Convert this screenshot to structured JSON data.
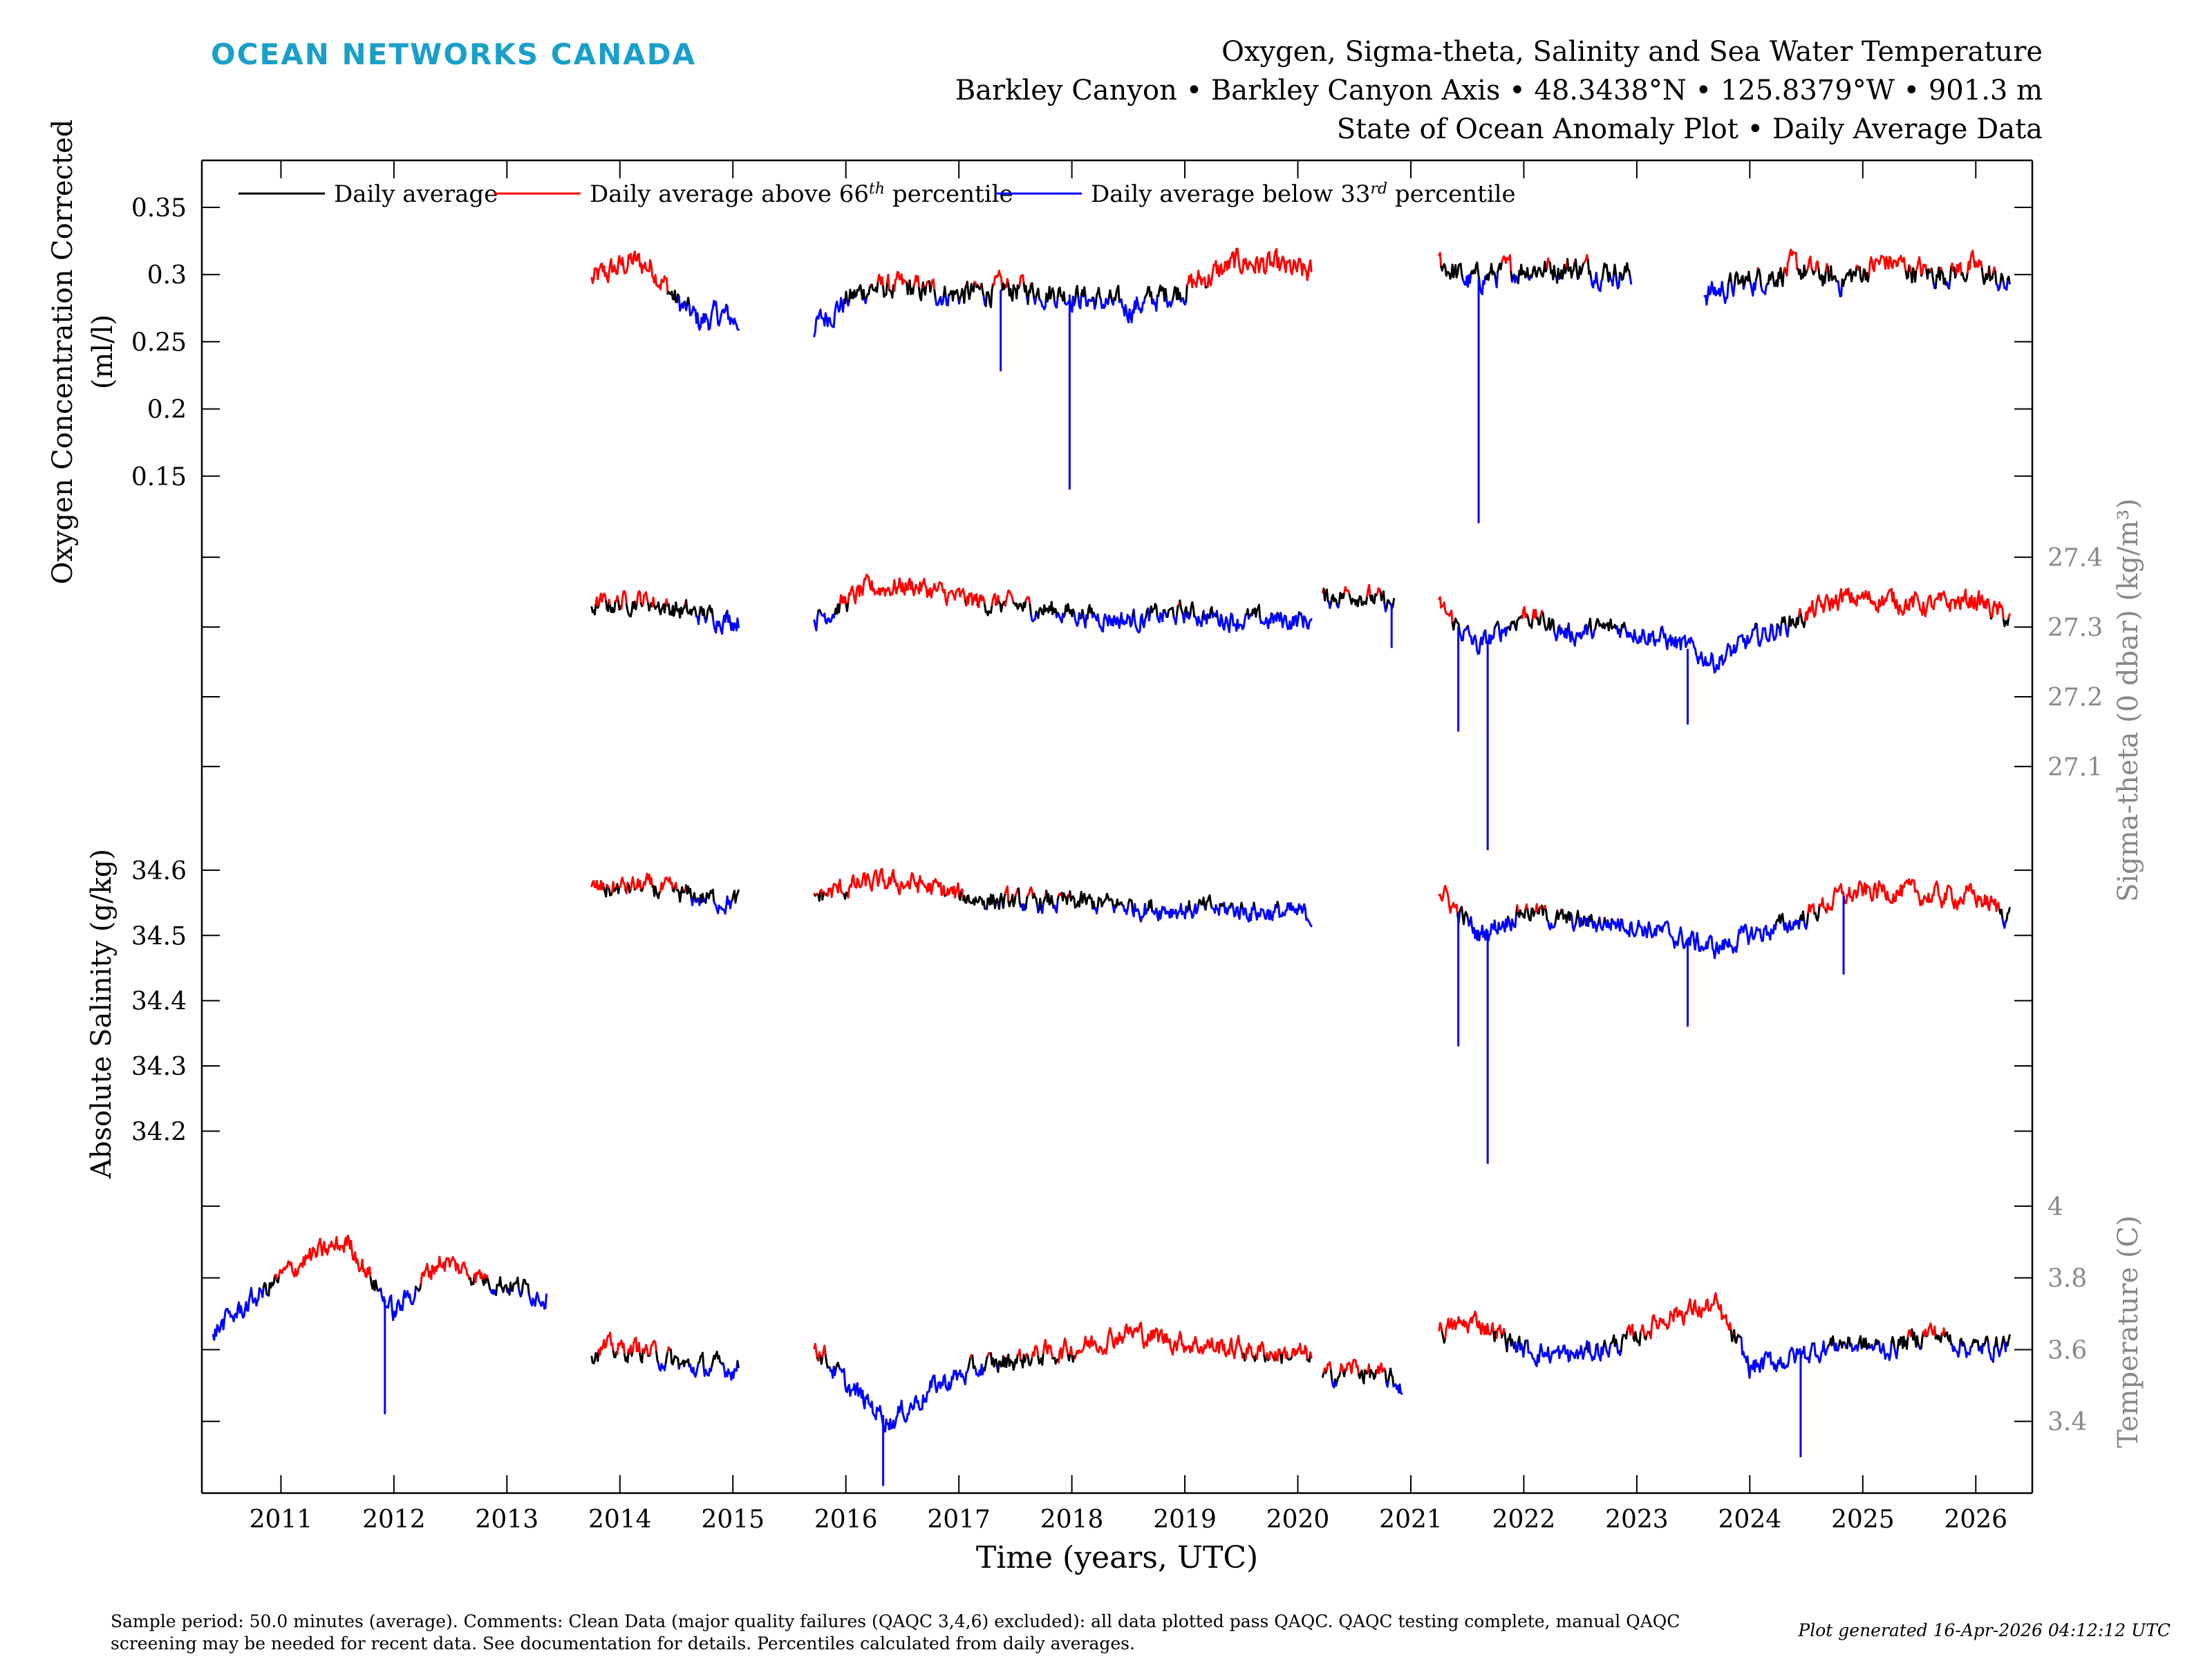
{
  "header": {
    "logo_text": "OCEAN NETWORKS CANADA",
    "title_line1": "Oxygen, Sigma-theta, Salinity and Sea Water Temperature",
    "title_line2": "Barkley Canyon • Barkley Canyon Axis • 48.3438°N • 125.8379°W • 901.3 m",
    "title_line3": "State of Ocean Anomaly Plot • Daily Average Data"
  },
  "footer": {
    "note": "Sample period: 50.0 minutes (average). Comments: Clean Data (major quality failures (QAQC 3,4,6) excluded): all data plotted pass QAQC. QAQC testing complete, manual QAQC screening may be needed for recent data. See documentation for details. Percentiles calculated from daily averages.",
    "generated": "Plot generated 16-Apr-2026 04:12:12 UTC"
  },
  "colors": {
    "average": "#000000",
    "above": "#ff0000",
    "below": "#0000ff",
    "right_axis": "#888888",
    "logo": "#1aa0c8"
  },
  "chart_data": {
    "type": "line",
    "xlabel": "Time (years, UTC)",
    "xlim": [
      2010.3,
      2026.5
    ],
    "x_ticks": [
      2011,
      2012,
      2013,
      2014,
      2015,
      2016,
      2017,
      2018,
      2019,
      2020,
      2021,
      2022,
      2023,
      2024,
      2025,
      2026
    ],
    "legend": {
      "position": "top-left",
      "entries": [
        {
          "label": "Daily average",
          "sup": "",
          "suffix": "",
          "color": "#000000"
        },
        {
          "label": "Daily average above 66",
          "sup": "th",
          "suffix": " percentile",
          "color": "#ff0000"
        },
        {
          "label": "Daily average below 33",
          "sup": "rd",
          "suffix": " percentile",
          "color": "#0000ff"
        }
      ]
    },
    "panels": [
      {
        "variable": "Oxygen Concentration Corrected",
        "ylabel": [
          "Oxygen Concentration Corrected",
          "(ml/l)"
        ],
        "axis_side": "left",
        "ylim": [
          0.1,
          0.385
        ],
        "yticks": [
          0.15,
          0.2,
          0.25,
          0.3,
          0.35
        ],
        "ytick_labels": [
          "0.15",
          "0.2",
          "0.25",
          "0.3",
          "0.35"
        ],
        "segments": [
          {
            "x": [
              2013.75,
              2014.1,
              2014.3,
              2014.5,
              2014.7,
              2014.9,
              2015.05
            ],
            "y": [
              0.295,
              0.31,
              0.305,
              0.28,
              0.265,
              0.27,
              0.265
            ]
          },
          {
            "x": [
              2015.72,
              2015.9,
              2016.2,
              2016.5,
              2017.0,
              2017.5,
              2018.0,
              2018.5,
              2019.0,
              2019.5,
              2020.12
            ],
            "y": [
              0.26,
              0.275,
              0.29,
              0.29,
              0.285,
              0.29,
              0.285,
              0.275,
              0.29,
              0.31,
              0.3
            ]
          },
          {
            "x": [
              2021.25,
              2021.5,
              2022.0,
              2022.5,
              2022.95
            ],
            "y": [
              0.31,
              0.295,
              0.305,
              0.305,
              0.3
            ]
          },
          {
            "x": [
              2023.6,
              2024.0,
              2024.4,
              2024.8,
              2025.2,
              2025.6,
              2026.0,
              2026.3
            ],
            "y": [
              0.285,
              0.295,
              0.305,
              0.295,
              0.31,
              0.3,
              0.305,
              0.29
            ]
          }
        ],
        "spikes": [
          {
            "x": 2017.98,
            "y": 0.14
          },
          {
            "x": 2017.37,
            "y": 0.228
          },
          {
            "x": 2021.6,
            "y": 0.115
          }
        ]
      },
      {
        "variable": "Sigma-theta",
        "ylabel": [
          "Sigma-theta (0 dbar) (kg/m³)"
        ],
        "axis_side": "right",
        "ylim": [
          26.97,
          27.42
        ],
        "yticks": [
          27.1,
          27.2,
          27.3,
          27.4
        ],
        "ytick_labels": [
          "27.1",
          "27.2",
          "27.3",
          "27.4"
        ],
        "segments": [
          {
            "x": [
              2013.75,
              2014.2,
              2014.6,
              2015.05
            ],
            "y": [
              27.33,
              27.34,
              27.32,
              27.31
            ]
          },
          {
            "x": [
              2015.72,
              2016.2,
              2016.6,
              2017.0,
              2017.5,
              2018.0,
              2018.5,
              2019.0,
              2019.5,
              2020.12
            ],
            "y": [
              27.31,
              27.355,
              27.36,
              27.34,
              27.33,
              27.32,
              27.31,
              27.32,
              27.31,
              27.31
            ]
          },
          {
            "x": [
              2020.22,
              2020.5,
              2020.85
            ],
            "y": [
              27.34,
              27.35,
              27.33
            ]
          },
          {
            "x": [
              2021.25,
              2021.6,
              2022.0,
              2022.4,
              2022.9,
              2023.3,
              2023.7,
              2024.0,
              2024.4,
              2024.8,
              2025.2,
              2025.6,
              2026.0,
              2026.3
            ],
            "y": [
              27.33,
              27.27,
              27.32,
              27.29,
              27.3,
              27.28,
              27.25,
              27.28,
              27.31,
              27.34,
              27.34,
              27.33,
              27.34,
              27.31
            ]
          }
        ],
        "spikes": [
          {
            "x": 2021.68,
            "y": 26.98
          },
          {
            "x": 2021.42,
            "y": 27.15
          },
          {
            "x": 2023.45,
            "y": 27.16
          },
          {
            "x": 2020.83,
            "y": 27.27
          }
        ]
      },
      {
        "variable": "Absolute Salinity",
        "ylabel": [
          "Absolute Salinity (g/kg)"
        ],
        "axis_side": "left",
        "ylim": [
          34.14,
          34.62
        ],
        "yticks": [
          34.2,
          34.3,
          34.4,
          34.5,
          34.6
        ],
        "ytick_labels": [
          "34.2",
          "34.3",
          "34.4",
          "34.5",
          "34.6"
        ],
        "segments": [
          {
            "x": [
              2013.75,
              2014.2,
              2014.6,
              2015.05
            ],
            "y": [
              34.57,
              34.575,
              34.56,
              34.55
            ]
          },
          {
            "x": [
              2015.72,
              2016.2,
              2016.6,
              2017.0,
              2017.5,
              2018.0,
              2018.5,
              2019.0,
              2019.5,
              2020.12
            ],
            "y": [
              34.56,
              34.58,
              34.58,
              34.56,
              34.55,
              34.55,
              34.545,
              34.54,
              34.54,
              34.53
            ]
          },
          {
            "x": [
              2021.25,
              2021.6,
              2022.0,
              2022.4,
              2022.9,
              2023.3,
              2023.7,
              2024.0,
              2024.4,
              2024.8,
              2025.2,
              2025.6,
              2026.0,
              2026.3
            ],
            "y": [
              34.57,
              34.5,
              34.54,
              34.52,
              34.52,
              34.5,
              34.48,
              34.5,
              34.52,
              34.56,
              34.57,
              34.56,
              34.56,
              34.53
            ]
          }
        ],
        "spikes": [
          {
            "x": 2021.68,
            "y": 34.15
          },
          {
            "x": 2021.42,
            "y": 34.33
          },
          {
            "x": 2023.45,
            "y": 34.36
          },
          {
            "x": 2024.83,
            "y": 34.44
          }
        ]
      },
      {
        "variable": "Temperature",
        "ylabel": [
          "Temperature (C)"
        ],
        "axis_side": "right",
        "ylim": [
          3.2,
          4.1
        ],
        "yticks": [
          3.4,
          3.6,
          3.8,
          4.0
        ],
        "ytick_labels": [
          "3.4",
          "3.6",
          "3.8",
          "4"
        ],
        "segments": [
          {
            "x": [
              2010.4,
              2010.8,
              2011.2,
              2011.6,
              2012.0,
              2012.4,
              2012.8,
              2013.35
            ],
            "y": [
              3.65,
              3.75,
              3.85,
              3.9,
              3.7,
              3.85,
              3.8,
              3.75
            ]
          },
          {
            "x": [
              2013.75,
              2014.2,
              2014.6,
              2015.05
            ],
            "y": [
              3.6,
              3.6,
              3.55,
              3.55
            ]
          },
          {
            "x": [
              2015.72,
              2016.0,
              2016.4,
              2016.8,
              2017.2,
              2017.6,
              2018.0,
              2018.5,
              2019.0,
              2019.5,
              2020.12
            ],
            "y": [
              3.62,
              3.5,
              3.4,
              3.5,
              3.55,
              3.58,
              3.6,
              3.65,
              3.62,
              3.6,
              3.58
            ]
          },
          {
            "x": [
              2020.22,
              2020.5,
              2020.92
            ],
            "y": [
              3.52,
              3.55,
              3.5
            ]
          },
          {
            "x": [
              2021.25,
              2021.6,
              2022.0,
              2022.4,
              2022.9,
              2023.3,
              2023.7,
              2024.0,
              2024.4,
              2024.8,
              2025.2,
              2025.6,
              2026.0,
              2026.3
            ],
            "y": [
              3.65,
              3.68,
              3.6,
              3.58,
              3.62,
              3.7,
              3.72,
              3.55,
              3.58,
              3.62,
              3.6,
              3.65,
              3.6,
              3.62
            ]
          }
        ],
        "spikes": [
          {
            "x": 2016.33,
            "y": 3.22
          },
          {
            "x": 2024.45,
            "y": 3.3
          },
          {
            "x": 2011.92,
            "y": 3.42
          }
        ]
      }
    ]
  }
}
